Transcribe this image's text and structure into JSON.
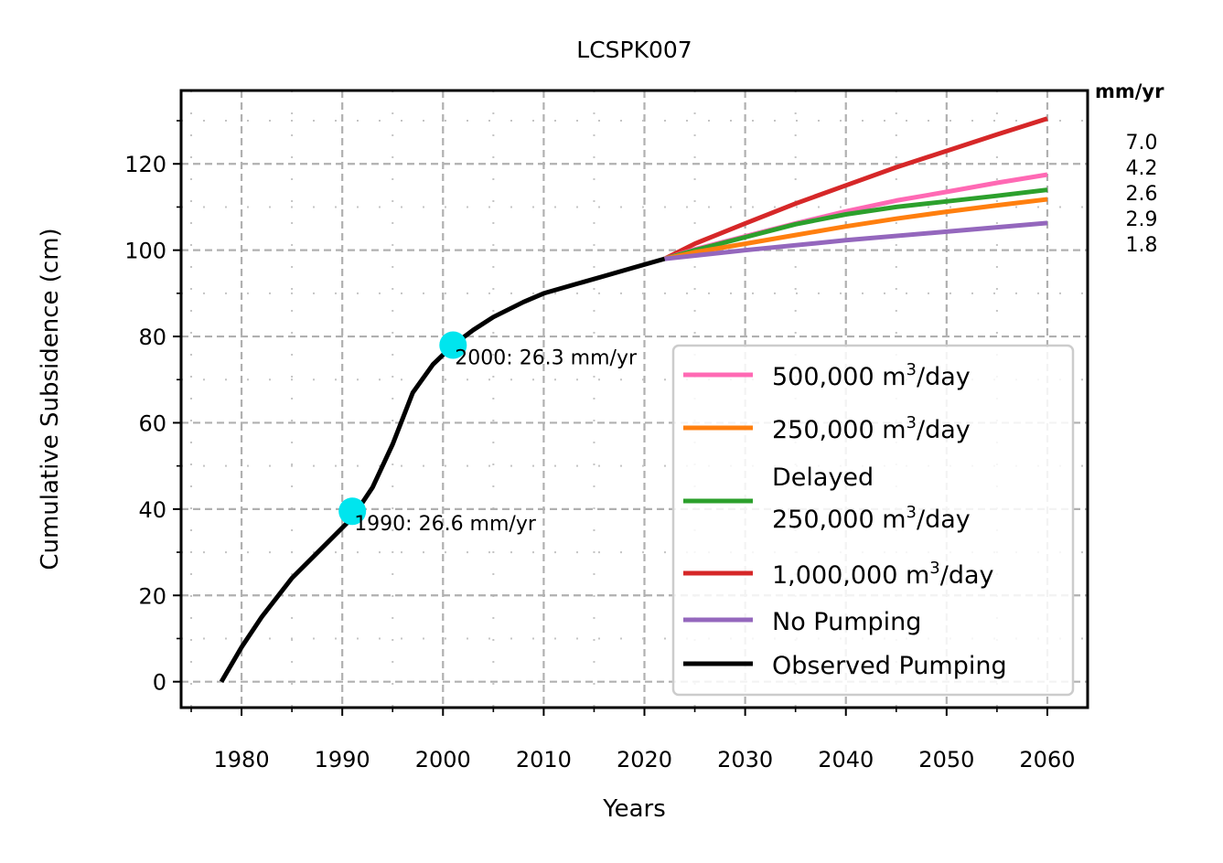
{
  "chart_data": {
    "type": "line",
    "title": "LCSPK007",
    "xlabel": "Years",
    "ylabel": "Cumulative Subsidence (cm)",
    "xlim": [
      1974,
      2064
    ],
    "ylim": [
      -6,
      137
    ],
    "xticks": [
      1980,
      1990,
      2000,
      2010,
      2020,
      2030,
      2040,
      2050,
      2060
    ],
    "yticks": [
      0,
      20,
      40,
      60,
      80,
      100,
      120
    ],
    "grid": true,
    "legend_position": "lower-right",
    "rates_header": "mm/yr",
    "series": [
      {
        "key": "p500k",
        "name_prefix": "500,000 m",
        "name_sup": "3",
        "name_suffix": "/day",
        "color": "#ff69b4",
        "rate": "4.2",
        "x": [
          2022,
          2025,
          2030,
          2035,
          2040,
          2045,
          2050,
          2055,
          2060
        ],
        "values": [
          98,
          100.2,
          103.2,
          106.2,
          109,
          111.5,
          113.5,
          115.6,
          117.5
        ]
      },
      {
        "key": "p250k",
        "name_prefix": "250,000 m",
        "name_sup": "3",
        "name_suffix": "/day",
        "color": "#ff7f0e",
        "rate": "2.9",
        "x": [
          2022,
          2025,
          2030,
          2035,
          2040,
          2045,
          2050,
          2055,
          2060
        ],
        "values": [
          98,
          99.5,
          101.5,
          103.5,
          105.5,
          107.3,
          108.9,
          110.4,
          111.8
        ]
      },
      {
        "key": "delayed",
        "name_line1": "Delayed",
        "name_prefix": "250,000 m",
        "name_sup": "3",
        "name_suffix": "/day",
        "color": "#2ca02c",
        "rate": "2.6",
        "x": [
          2022,
          2025,
          2030,
          2035,
          2040,
          2045,
          2050,
          2055,
          2060
        ],
        "values": [
          98,
          100,
          103,
          106,
          108.3,
          110,
          111.3,
          112.6,
          114
        ]
      },
      {
        "key": "p1m",
        "name_prefix": "1,000,000 m",
        "name_sup": "3",
        "name_suffix": "/day",
        "color": "#d62728",
        "rate": "7.0",
        "x": [
          2022,
          2025,
          2030,
          2035,
          2040,
          2045,
          2050,
          2055,
          2060
        ],
        "values": [
          98,
          101.5,
          106.2,
          110.8,
          115,
          119.2,
          123,
          126.8,
          130.5
        ]
      },
      {
        "key": "nopump",
        "name": "No Pumping",
        "color": "#9467bd",
        "rate": "1.8",
        "x": [
          2022,
          2030,
          2040,
          2050,
          2060
        ],
        "values": [
          98,
          100,
          102.3,
          104.3,
          106.3
        ]
      },
      {
        "key": "observed",
        "name": "Observed Pumping",
        "color": "#000000",
        "x": [
          1978,
          1980,
          1982,
          1985,
          1988,
          1991,
          1993,
          1995,
          1997,
          1999,
          2001,
          2003,
          2005,
          2008,
          2010,
          2013,
          2016,
          2019,
          2022
        ],
        "values": [
          0,
          8,
          15,
          24,
          31,
          38,
          45,
          55,
          67,
          73.5,
          78,
          81.5,
          84.5,
          88,
          90,
          92,
          94,
          96,
          98
        ]
      }
    ],
    "annotations": [
      {
        "x": 1991,
        "y": 39.5,
        "text": "1990: 26.6 mm/yr",
        "marker_color": "#00e5ee"
      },
      {
        "x": 2001,
        "y": 78,
        "text": "2000: 26.3 mm/yr",
        "marker_color": "#00e5ee"
      }
    ]
  }
}
